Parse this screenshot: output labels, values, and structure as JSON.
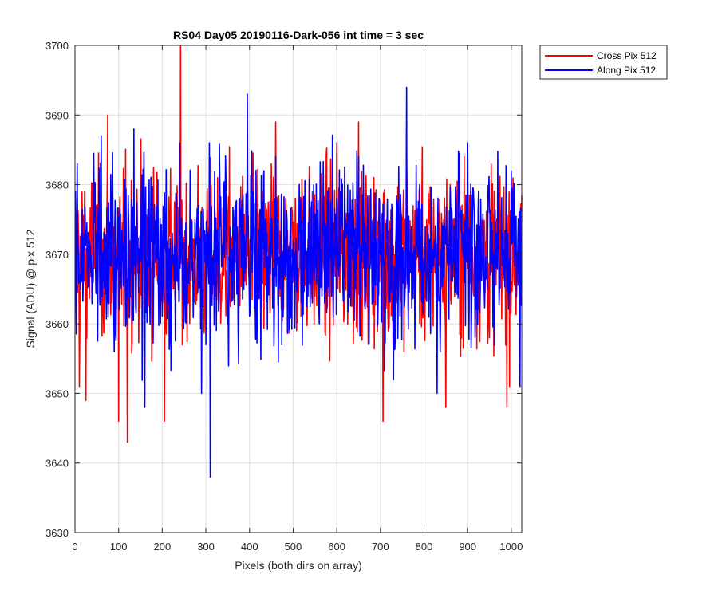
{
  "chart_data": {
    "type": "line",
    "title": "RS04 Day05 20190116-Dark-056 int time = 3 sec",
    "xlabel": "Pixels (both dirs on array)",
    "ylabel": "Signal (ADU) @ pix 512",
    "xlim": [
      0,
      1024
    ],
    "ylim": [
      3630,
      3700
    ],
    "xticks": [
      0,
      100,
      200,
      300,
      400,
      500,
      600,
      700,
      800,
      900,
      1000
    ],
    "yticks": [
      3630,
      3640,
      3650,
      3660,
      3670,
      3680,
      3690,
      3700
    ],
    "grid": true,
    "legend_position": "outside-top-right",
    "series": [
      {
        "name": "Cross Pix 512",
        "color": "#ff0000",
        "note_points": "noisy signal, one value per pixel 1..1024",
        "x": [
          5,
          10,
          25,
          45,
          75,
          100,
          120,
          150,
          175,
          205,
          225,
          242,
          260,
          300,
          330,
          400,
          450,
          460,
          500,
          550,
          600,
          620,
          650,
          680,
          706,
          760,
          800,
          850,
          900,
          950,
          990,
          1020
        ],
        "y": [
          3672,
          3651,
          3649,
          3668,
          3690,
          3646,
          3643,
          3676,
          3668,
          3646,
          3665,
          3700,
          3663,
          3666,
          3673,
          3668,
          3683,
          3689,
          3666,
          3664,
          3686,
          3667,
          3689,
          3670,
          3646,
          3683,
          3671,
          3648,
          3668,
          3658,
          3648,
          3668
        ]
      },
      {
        "name": "Along Pix 512",
        "color": "#0000ff",
        "x": [
          5,
          30,
          60,
          90,
          135,
          150,
          160,
          240,
          290,
          308,
          310,
          350,
          395,
          420,
          460,
          500,
          560,
          600,
          650,
          690,
          730,
          760,
          790,
          830,
          870,
          900,
          950,
          1000,
          1020
        ],
        "y": [
          3683,
          3666,
          3687,
          3656,
          3688,
          3670,
          3648,
          3686,
          3650,
          3686,
          3638,
          3660,
          3693,
          3672,
          3684,
          3672,
          3660,
          3678,
          3684,
          3670,
          3652,
          3694,
          3680,
          3650,
          3667,
          3686,
          3676,
          3682,
          3651
        ]
      }
    ]
  }
}
